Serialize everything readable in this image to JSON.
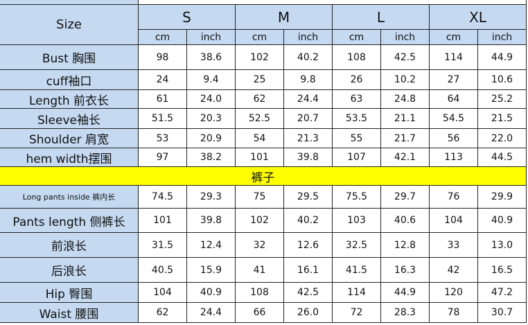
{
  "header": {
    "size_label": "Size",
    "sizes": [
      "S",
      "M",
      "L",
      "XL"
    ],
    "units": [
      "cm",
      "inch"
    ]
  },
  "top_rows": [
    {
      "label": "Bust 胸围",
      "values": [
        "98",
        "38.6",
        "102",
        "40.2",
        "108",
        "42.5",
        "114",
        "44.9"
      ]
    },
    {
      "label": "cuff袖口",
      "values": [
        "24",
        "9.4",
        "25",
        "9.8",
        "26",
        "10.2",
        "27",
        "10.6"
      ]
    },
    {
      "label": "Length 前衣长",
      "values": [
        "61",
        "24.0",
        "62",
        "24.4",
        "63",
        "24.8",
        "64",
        "25.2"
      ]
    },
    {
      "label": "Sleeve袖长",
      "values": [
        "51.5",
        "20.3",
        "52.5",
        "20.7",
        "53.5",
        "21.1",
        "54.5",
        "21.5"
      ]
    },
    {
      "label": "Shoulder 肩宽",
      "values": [
        "53",
        "20.9",
        "54",
        "21.3",
        "55",
        "21.7",
        "56",
        "22.0"
      ]
    },
    {
      "label": "hem width摆围",
      "values": [
        "97",
        "38.2",
        "101",
        "39.8",
        "107",
        "42.1",
        "113",
        "44.5"
      ]
    }
  ],
  "section_title": "裤子",
  "bottom_rows": [
    {
      "label": "Long pants inside 裤内长",
      "values": [
        "74.5",
        "29.3",
        "75",
        "29.5",
        "75.5",
        "29.7",
        "76",
        "29.9"
      ]
    },
    {
      "label": "Pants length 侧裤长",
      "values": [
        "101",
        "39.8",
        "102",
        "40.2",
        "103",
        "40.6",
        "104",
        "40.9"
      ]
    },
    {
      "label": "前浪长",
      "values": [
        "31.5",
        "12.4",
        "32",
        "12.6",
        "32.5",
        "12.8",
        "33",
        "13.0"
      ]
    },
    {
      "label": "后浪长",
      "values": [
        "40.5",
        "15.9",
        "41",
        "16.1",
        "41.5",
        "16.3",
        "42",
        "16.5"
      ]
    },
    {
      "label": "Hip 臀围",
      "values": [
        "104",
        "40.9",
        "108",
        "42.5",
        "114",
        "44.9",
        "120",
        "47.2"
      ]
    },
    {
      "label": "Waist 腰围",
      "values": [
        "62",
        "24.4",
        "66",
        "26.0",
        "72",
        "28.3",
        "78",
        "30.7"
      ]
    }
  ]
}
